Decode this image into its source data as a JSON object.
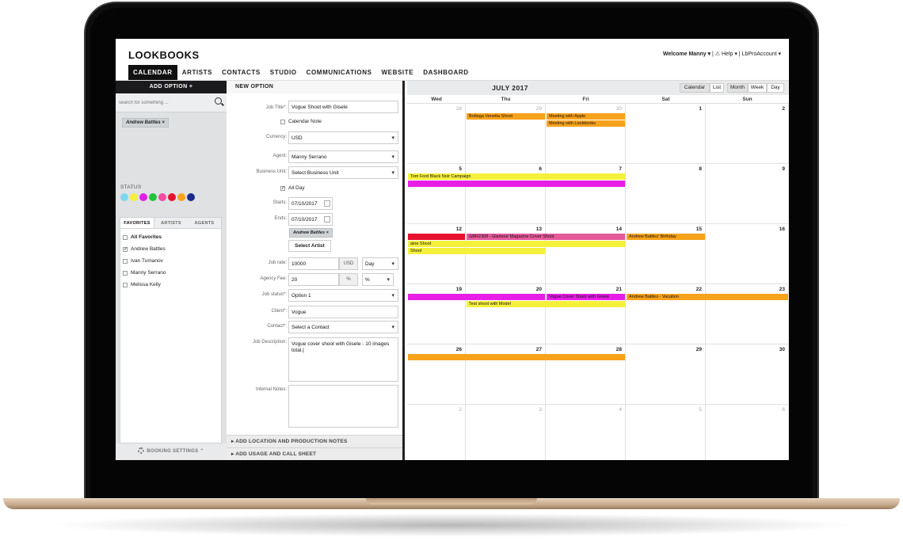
{
  "header": {
    "logo": "LOOKBOOKS",
    "welcome_user": "Welcome Manny ▾",
    "welcome_rest": " | ⚠ Help ▾ | LbProAccount ▾",
    "nav": [
      "CALENDAR",
      "ARTISTS",
      "CONTACTS",
      "STUDIO",
      "COMMUNICATIONS",
      "WEBSITE",
      "DASHBOARD"
    ]
  },
  "sidebar": {
    "add_option": "ADD OPTION +",
    "search_placeholder": "search for something ...",
    "filter_chip": "Andrew Battles ×",
    "status_label": "STATUS",
    "status_colors": [
      "#7fd7f2",
      "#f5f03a",
      "#e61ee6",
      "#22c43c",
      "#f04ca0",
      "#e8112d",
      "#f7a21b",
      "#1b2a8c"
    ],
    "tabs": [
      "FAVORITES",
      "ARTISTS",
      "AGENTS"
    ],
    "favorites": [
      {
        "label": "All Favorites",
        "checked": false,
        "bold": true
      },
      {
        "label": "Andrew Battles",
        "checked": true,
        "bold": false
      },
      {
        "label": "Ivan Tumanov",
        "checked": false,
        "bold": false
      },
      {
        "label": "Manny Serrano",
        "checked": false,
        "bold": false
      },
      {
        "label": "Melissa Kelly",
        "checked": false,
        "bold": false
      }
    ],
    "booking_settings": "BOOKING SETTINGS ⌃"
  },
  "form": {
    "title": "NEW OPTION",
    "job_title_label": "Job Title*:",
    "job_title_value": "Vogue Shoot with Gisele",
    "calendar_note_label": "Calendar Note",
    "currency_label": "Currency:",
    "currency_value": "USD",
    "agent_label": "Agent:",
    "agent_value": "Manny Serrano",
    "business_unit_label": "Business Unit:",
    "business_unit_value": "Select Business Unit",
    "all_day_label": "All Day",
    "starts_label": "Starts:",
    "starts_value": "07/10/2017",
    "ends_label": "Ends:",
    "ends_value": "07/10/2017",
    "artist_chip": "Andrew Battles ×",
    "select_artist": "Select Artist",
    "job_rate_label": "Job rate:",
    "job_rate_value": "10000",
    "job_rate_unit": "USD",
    "job_rate_period": "Day",
    "agency_fee_label": "Agency Fee:",
    "agency_fee_value": "20",
    "agency_fee_unit": "%",
    "agency_fee_type": "%",
    "job_status_label": "Job status*:",
    "job_status_value": "Option 1",
    "client_label": "Client*:",
    "client_value": "Vogue",
    "contact_label": "Contact*:",
    "contact_value": "Select a Contact",
    "job_description_label": "Job Description:",
    "job_description_value": "Vogue cover shoot with Gisele - 10 images total.|",
    "internal_notes_label": "Internal Notes:",
    "footer_1": "▸ ADD LOCATION AND PRODUCTION NOTES",
    "footer_2": "▸ ADD USAGE AND CALL SHEET"
  },
  "calendar": {
    "title": "JULY 2017",
    "view_buttons": [
      "Calendar",
      "List",
      "Month",
      "Week",
      "Day"
    ],
    "days_of_week": [
      "Wed",
      "Thu",
      "Fri",
      "Sat",
      "Sun"
    ],
    "weeks": [
      [
        "28",
        "29",
        "30",
        "1",
        "2"
      ],
      [
        "5",
        "6",
        "7",
        "8",
        "9"
      ],
      [
        "12",
        "13",
        "14",
        "15",
        "16"
      ],
      [
        "19",
        "20",
        "21",
        "22",
        "23"
      ],
      [
        "26",
        "27",
        "28",
        "29",
        "30"
      ],
      [
        "2",
        "3",
        "4",
        "5",
        "6"
      ]
    ],
    "events": {
      "e1": "Bottega Venetta Shoot",
      "e2": "Meeting with Apple",
      "e3": "Meeting with Lookbooks",
      "e4": "Tom Ford Black Noir Campaign",
      "e5": "GBR2308 - Glamour Magazine Cover Shoot",
      "e6": "Andrew Battles' Birthday",
      "e7": "aine Shoot",
      "e8": "Shoot",
      "e9": "Vogue Cover Shoot with Gisele",
      "e10": "Andrew Battles - Vacation",
      "e11": "Test shoot with Model"
    },
    "event_colors": {
      "orange": "#f7a21b",
      "yellow": "#f5f03a",
      "magenta": "#e61ee6",
      "red": "#e8112d",
      "pink": "#e55a9a"
    }
  }
}
